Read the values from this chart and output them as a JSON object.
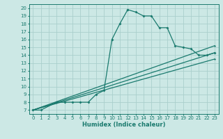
{
  "xlabel": "Humidex (Indice chaleur)",
  "bg_color": "#cce8e5",
  "line_color": "#1a7a6e",
  "grid_color": "#aacfcc",
  "xlim": [
    -0.5,
    23.5
  ],
  "ylim": [
    6.5,
    20.5
  ],
  "xticks": [
    0,
    1,
    2,
    3,
    4,
    5,
    6,
    7,
    8,
    9,
    10,
    11,
    12,
    13,
    14,
    15,
    16,
    17,
    18,
    19,
    20,
    21,
    22,
    23
  ],
  "yticks": [
    7,
    8,
    9,
    10,
    11,
    12,
    13,
    14,
    15,
    16,
    17,
    18,
    19,
    20
  ],
  "curve": {
    "x": [
      0,
      1,
      3,
      3,
      4,
      5,
      6,
      7,
      8,
      9,
      10,
      11,
      12,
      12,
      13,
      14,
      15,
      16,
      17,
      18,
      19,
      20,
      21,
      22,
      23
    ],
    "y": [
      7,
      7,
      8,
      8,
      8,
      8,
      8,
      8,
      9,
      9.5,
      16,
      18,
      19.8,
      19.8,
      19.5,
      19,
      19,
      17.5,
      17.5,
      15.2,
      15,
      14.8,
      14,
      14,
      14.3
    ]
  },
  "diag_lines": [
    {
      "x": [
        0,
        23
      ],
      "y": [
        7,
        15.2
      ]
    },
    {
      "x": [
        0,
        23
      ],
      "y": [
        7,
        14.3
      ]
    },
    {
      "x": [
        0,
        23
      ],
      "y": [
        7,
        13.5
      ]
    }
  ]
}
